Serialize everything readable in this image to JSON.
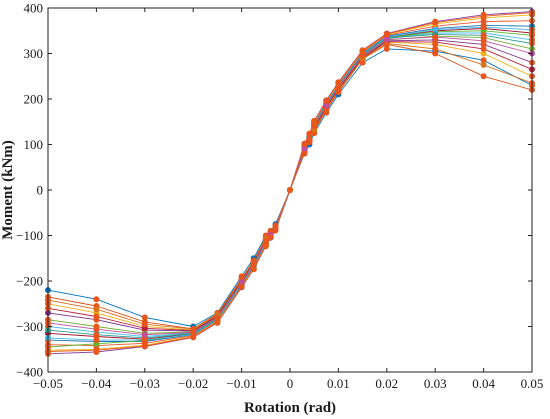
{
  "chart_data": {
    "type": "line",
    "xlabel": "Rotation (rad)",
    "ylabel": "Moment (kNm)",
    "xlim": [
      -0.05,
      0.05
    ],
    "ylim": [
      -400,
      400
    ],
    "x_ticks": [
      -0.05,
      -0.04,
      -0.03,
      -0.02,
      -0.01,
      0,
      0.01,
      0.02,
      0.03,
      0.04,
      0.05
    ],
    "x_tick_labels": [
      "−0.05",
      "−0.04",
      "−0.03",
      "−0.02",
      "−0.01",
      "0",
      "0.01",
      "0.02",
      "0.03",
      "0.04",
      "0.05"
    ],
    "y_ticks": [
      -400,
      -300,
      -200,
      -100,
      0,
      100,
      200,
      300,
      400
    ],
    "y_tick_labels": [
      "−400",
      "−300",
      "−200",
      "−100",
      "0",
      "100",
      "200",
      "300",
      "400"
    ],
    "grid": false,
    "legend": "none",
    "markers": true,
    "x": [
      -0.05,
      -0.04,
      -0.03,
      -0.02,
      -0.015,
      -0.01,
      -0.0075,
      -0.005,
      -0.004,
      -0.003,
      0,
      0.003,
      0.004,
      0.005,
      0.0075,
      0.01,
      0.015,
      0.02,
      0.03,
      0.04,
      0.05
    ],
    "series": [
      {
        "values": [
          -220,
          -240,
          -280,
          -300,
          -270,
          -190,
          -150,
          -100,
          -90,
          -75,
          0,
          80,
          100,
          125,
          170,
          210,
          280,
          310,
          305,
          285,
          230
        ]
      },
      {
        "values": [
          -235,
          -255,
          -290,
          -305,
          -272,
          -195,
          -155,
          -105,
          -92,
          -78,
          0,
          82,
          105,
          130,
          175,
          215,
          288,
          320,
          300,
          250,
          220
        ]
      },
      {
        "values": [
          -250,
          -270,
          -300,
          -308,
          -275,
          -198,
          -158,
          -108,
          -95,
          -80,
          0,
          85,
          108,
          135,
          180,
          220,
          290,
          325,
          320,
          300,
          250
        ]
      },
      {
        "values": [
          -270,
          -285,
          -308,
          -310,
          -278,
          -200,
          -160,
          -110,
          -97,
          -82,
          0,
          88,
          110,
          138,
          183,
          222,
          292,
          328,
          330,
          320,
          280
        ]
      },
      {
        "values": [
          -285,
          -300,
          -315,
          -312,
          -280,
          -202,
          -162,
          -112,
          -98,
          -83,
          0,
          90,
          112,
          140,
          185,
          225,
          295,
          330,
          338,
          335,
          310
        ]
      },
      {
        "values": [
          -300,
          -312,
          -322,
          -314,
          -282,
          -204,
          -164,
          -114,
          -100,
          -84,
          0,
          92,
          114,
          142,
          187,
          227,
          297,
          333,
          345,
          345,
          330
        ]
      },
      {
        "values": [
          -315,
          -322,
          -328,
          -316,
          -284,
          -206,
          -166,
          -116,
          -101,
          -85,
          0,
          94,
          116,
          144,
          189,
          229,
          299,
          335,
          350,
          355,
          345
        ]
      },
      {
        "values": [
          -330,
          -333,
          -333,
          -318,
          -286,
          -208,
          -168,
          -118,
          -102,
          -86,
          0,
          96,
          118,
          146,
          191,
          231,
          301,
          338,
          355,
          362,
          360
        ]
      },
      {
        "values": [
          -340,
          -342,
          -337,
          -320,
          -288,
          -210,
          -170,
          -120,
          -103,
          -87,
          0,
          98,
          120,
          148,
          193,
          233,
          303,
          340,
          360,
          370,
          372
        ]
      },
      {
        "values": [
          -352,
          -350,
          -341,
          -322,
          -290,
          -212,
          -172,
          -122,
          -104,
          -88,
          0,
          100,
          122,
          150,
          195,
          235,
          305,
          342,
          365,
          378,
          385
        ]
      },
      {
        "values": [
          -360,
          -356,
          -344,
          -324,
          -292,
          -214,
          -174,
          -124,
          -105,
          -89,
          0,
          102,
          124,
          152,
          197,
          237,
          307,
          344,
          370,
          385,
          392
        ]
      },
      {
        "values": [
          -345,
          -338,
          -331,
          -317,
          -285,
          -205,
          -165,
          -115,
          -100,
          -85,
          0,
          93,
          115,
          143,
          188,
          228,
          298,
          334,
          348,
          350,
          340
        ]
      },
      {
        "values": [
          -325,
          -330,
          -330,
          -317,
          -285,
          -207,
          -167,
          -117,
          -101,
          -85,
          0,
          95,
          117,
          145,
          190,
          230,
          300,
          336,
          352,
          358,
          352
        ]
      },
      {
        "values": [
          -260,
          -278,
          -304,
          -309,
          -276,
          -199,
          -159,
          -109,
          -96,
          -81,
          0,
          86,
          109,
          136,
          181,
          221,
          291,
          326,
          325,
          310,
          265
        ]
      },
      {
        "values": [
          -242,
          -262,
          -295,
          -306,
          -273,
          -196,
          -156,
          -106,
          -93,
          -79,
          0,
          84,
          106,
          132,
          177,
          217,
          289,
          322,
          310,
          275,
          235
        ]
      },
      {
        "values": [
          -308,
          -318,
          -325,
          -315,
          -283,
          -205,
          -165,
          -115,
          -100,
          -84,
          0,
          93,
          115,
          143,
          188,
          228,
          298,
          334,
          342,
          340,
          322
        ]
      },
      {
        "values": [
          -292,
          -306,
          -318,
          -313,
          -281,
          -203,
          -163,
          -113,
          -99,
          -83,
          0,
          91,
          113,
          141,
          186,
          226,
          296,
          331,
          336,
          328,
          300
        ]
      },
      {
        "values": [
          -355,
          -352,
          -343,
          -323,
          -291,
          -213,
          -173,
          -123,
          -104,
          -88,
          0,
          101,
          123,
          151,
          196,
          236,
          306,
          343,
          368,
          382,
          390
        ]
      }
    ],
    "colors": [
      "#0072bd",
      "#d95319",
      "#edb120",
      "#7e2f8e",
      "#77ac30",
      "#4dbeee",
      "#a2142f",
      "#1f77b4",
      "#e8562a",
      "#f2b51d",
      "#8c3fa0",
      "#5fb830",
      "#3fb5e8",
      "#b8213c",
      "#d6721a",
      "#2a9d8f",
      "#c04fa0",
      "#e65a1a"
    ],
    "marker_color": "#e8561e"
  }
}
